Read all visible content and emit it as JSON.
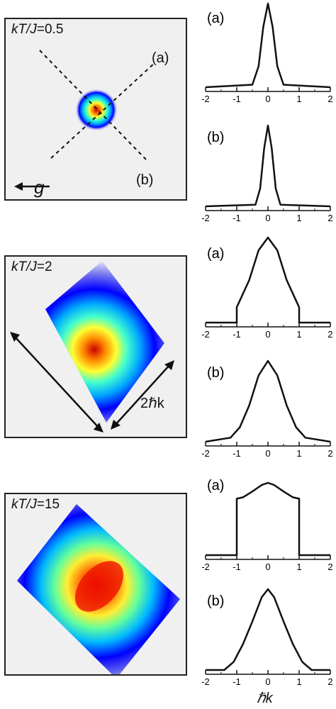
{
  "chart_data": [
    {
      "type": "heatmap",
      "panel": "top",
      "label_prefix": "kT/J",
      "label_value": "=0.5",
      "cut_labels": [
        "(a)",
        "(b)"
      ],
      "gravity_label": "g",
      "width_scale": 0.11,
      "clip": false
    },
    {
      "type": "heatmap",
      "panel": "middle",
      "label_prefix": "kT/J",
      "label_value": "=2",
      "arrow_label": "2ℏk",
      "width_scale": 0.5,
      "clip": true
    },
    {
      "type": "heatmap",
      "panel": "bottom",
      "label_prefix": "kT/J",
      "label_value": "=15",
      "width_scale": 1.0,
      "clip": true
    },
    {
      "type": "line",
      "tag": "(a)",
      "xlim": [
        -2,
        2
      ],
      "xticks": [
        "-2",
        "-1",
        "0",
        "1",
        "2"
      ],
      "x": [
        -2,
        -0.5,
        -0.3,
        -0.15,
        0,
        0.15,
        0.3,
        0.5,
        2
      ],
      "y": [
        0,
        0.03,
        0.25,
        0.72,
        1,
        0.72,
        0.25,
        0.03,
        0
      ]
    },
    {
      "type": "line",
      "tag": "(b)",
      "xlim": [
        -2,
        2
      ],
      "xticks": [
        "-2",
        "-1",
        "0",
        "1",
        "2"
      ],
      "x": [
        -2,
        -0.4,
        -0.25,
        -0.12,
        0,
        0.12,
        0.25,
        0.4,
        2
      ],
      "y": [
        0,
        0.02,
        0.22,
        0.72,
        1,
        0.72,
        0.22,
        0.02,
        0
      ]
    },
    {
      "type": "line",
      "tag": "(a)",
      "xlim": [
        -2,
        2
      ],
      "xticks": [
        "-2",
        "-1",
        "0",
        "1",
        "2"
      ],
      "x": [
        -2,
        -1,
        -1,
        -0.9,
        -0.6,
        -0.3,
        0,
        0.3,
        0.6,
        0.9,
        1,
        1,
        2
      ],
      "y": [
        0,
        0,
        0.18,
        0.26,
        0.5,
        0.85,
        1,
        0.85,
        0.5,
        0.26,
        0.18,
        0,
        0
      ]
    },
    {
      "type": "line",
      "tag": "(b)",
      "xlim": [
        -2,
        2
      ],
      "xticks": [
        "-2",
        "-1",
        "0",
        "1",
        "2"
      ],
      "x": [
        -2,
        -1.2,
        -0.9,
        -0.6,
        -0.3,
        0,
        0.3,
        0.6,
        0.9,
        1.2,
        2
      ],
      "y": [
        0,
        0.05,
        0.18,
        0.45,
        0.82,
        1,
        0.82,
        0.45,
        0.18,
        0.05,
        0
      ]
    },
    {
      "type": "line",
      "tag": "(a)",
      "xlim": [
        -2,
        2
      ],
      "xticks": [
        "-2",
        "-1",
        "0",
        "1",
        "2"
      ],
      "x": [
        -2,
        -1,
        -1,
        -0.8,
        -0.5,
        -0.2,
        0,
        0.2,
        0.5,
        0.8,
        1,
        1,
        2
      ],
      "y": [
        0,
        0,
        0.78,
        0.8,
        0.88,
        0.97,
        1,
        0.97,
        0.88,
        0.8,
        0.78,
        0,
        0
      ]
    },
    {
      "type": "line",
      "tag": "(b)",
      "xlim": [
        -2,
        2
      ],
      "xticks": [
        "-2",
        "-1",
        "0",
        "1",
        "2"
      ],
      "xlabel": "ℏk",
      "x": [
        -2,
        -1.4,
        -1.1,
        -0.8,
        -0.5,
        -0.2,
        0,
        0.2,
        0.5,
        0.8,
        1.1,
        1.4,
        2
      ],
      "y": [
        0,
        0,
        0.1,
        0.32,
        0.6,
        0.9,
        1,
        0.9,
        0.6,
        0.32,
        0.1,
        0,
        0
      ]
    }
  ]
}
